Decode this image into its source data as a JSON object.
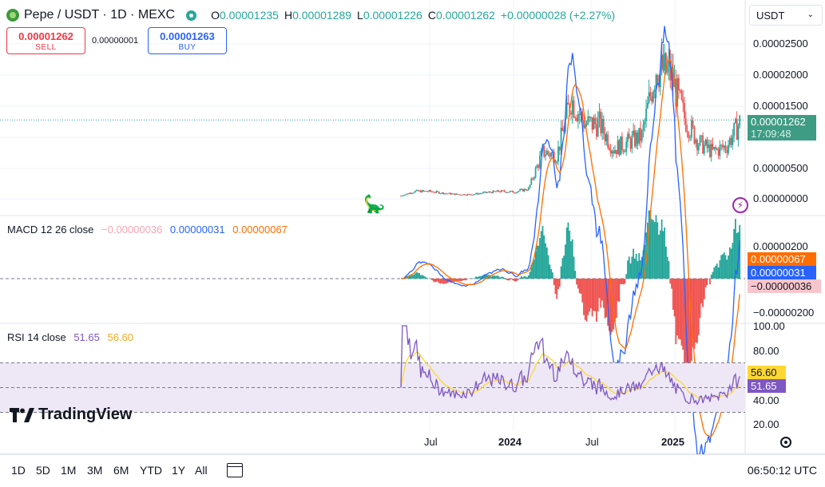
{
  "header": {
    "title": "Pepe / USDT · 1D · MEXC",
    "ohlc": [
      {
        "key": "O",
        "value": "0.00001235"
      },
      {
        "key": "H",
        "value": "0.00001289"
      },
      {
        "key": "L",
        "value": "0.00001226"
      },
      {
        "key": "C",
        "value": "0.00001262"
      }
    ],
    "change": "+0.00000028 (+2.27%)",
    "currency": "USDT"
  },
  "trade": {
    "sell_price": "0.00001262",
    "sell_label": "SELL",
    "spread": "0.00000001",
    "buy_price": "0.00001263",
    "buy_label": "BUY"
  },
  "price_axis": {
    "ticks": [
      "0.00002500",
      "0.00002000",
      "0.00001500",
      "0.00001000",
      "0.00000500",
      "0.00000000"
    ],
    "last_price": "0.00001262",
    "countdown": "17:09:48"
  },
  "macd": {
    "label": "MACD 12 26 close",
    "hist": "−0.00000036",
    "macd": "0.00000031",
    "signal": "0.00000067",
    "axis_ticks": [
      "0.00000200",
      "−0.00000200"
    ],
    "tag_signal": "0.00000067",
    "tag_macd": "0.00000031",
    "tag_hist": "−0.00000036"
  },
  "rsi": {
    "label": "RSI 14 close",
    "value": "51.65",
    "ma": "56.60",
    "axis_ticks": [
      "100.00",
      "80.00",
      "40.00",
      "20.00"
    ],
    "tag_ma": "56.60",
    "tag_value": "51.65"
  },
  "time_axis": {
    "labels": [
      {
        "text": "Jul",
        "bold": false
      },
      {
        "text": "2024",
        "bold": true
      },
      {
        "text": "Jul",
        "bold": false
      },
      {
        "text": "2025",
        "bold": true
      }
    ]
  },
  "watermark": "TradingView",
  "toolbar": {
    "ranges": [
      "1D",
      "5D",
      "1M",
      "3M",
      "6M",
      "YTD",
      "1Y",
      "All"
    ],
    "clock": "06:50:12 UTC"
  },
  "colors": {
    "up": "#26a69a",
    "down": "#ef5350",
    "macd_line": "#2962ff",
    "signal_line": "#ff6d00",
    "rsi_line": "#7e57c2",
    "rsi_ma": "#fdd835",
    "rsi_band": "#ede7f6"
  },
  "chart_data": {
    "type": "line",
    "title": "",
    "series": [
      {
        "name": "",
        "x": [
          "2023-05",
          "2023-06",
          "2023-07",
          "2023-08",
          "2023-09",
          "2023-10",
          "2023-11",
          "2023-12",
          "2024-01",
          "2024-02",
          "2024-03",
          "2024-04",
          "2024-05",
          "2024-06",
          "2024-07",
          "2024-08",
          "2024-09",
          "2024-10",
          "2024-11",
          "2024-12",
          "2025-01",
          "2025-02",
          "2025-03",
          "2025-04",
          "2025-05"
        ],
        "values": [
          5e-07,
          1.2e-06,
          1.2e-06,
          9e-07,
          7e-07,
          7e-07,
          1e-06,
          1.2e-06,
          1.1e-06,
          1.6e-06,
          7.5e-06,
          7e-06,
          1.6e-05,
          1.2e-05,
          1.2e-05,
          8e-06,
          9e-06,
          1e-05,
          2.1e-05,
          2e-05,
          1.3e-05,
          9e-06,
          7.5e-06,
          8.5e-06,
          1.262e-05
        ]
      }
    ],
    "ylim": [
      0,
      2.8e-05
    ]
  }
}
